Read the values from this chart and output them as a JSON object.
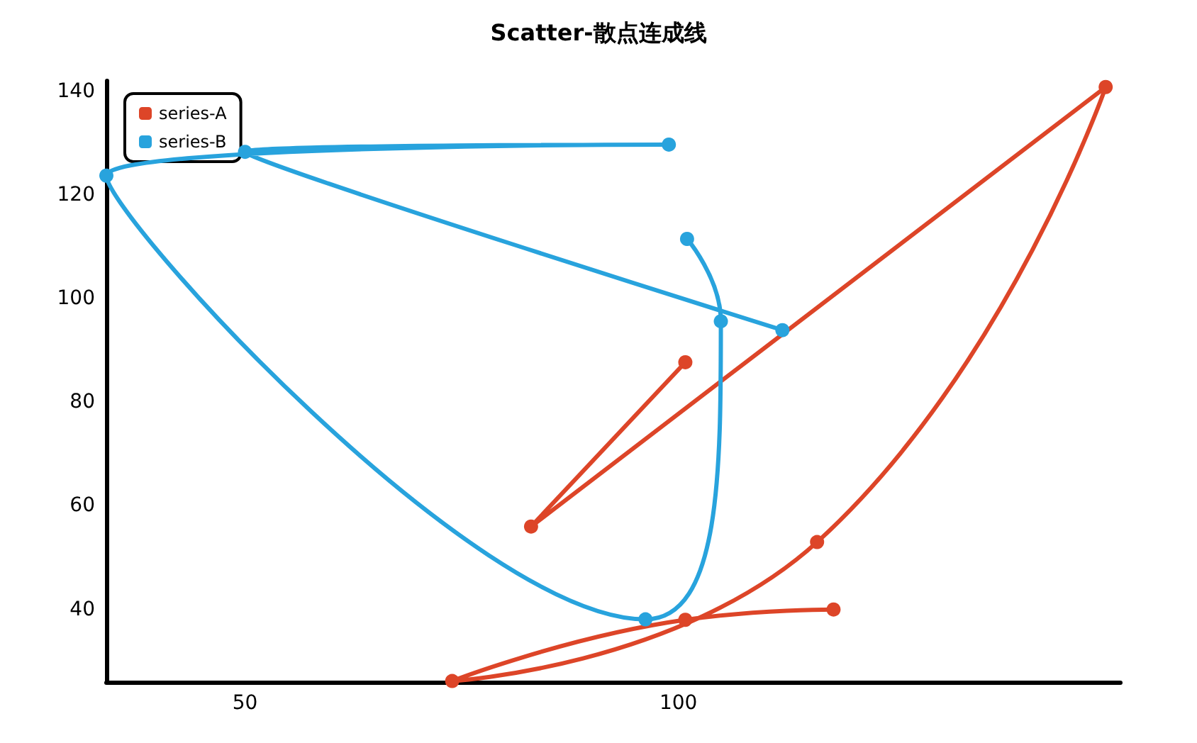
{
  "chart_data": {
    "type": "line",
    "title": "Scatter-散点连成线",
    "xlim": [
      34,
      151
    ],
    "xticks": [
      50,
      100
    ],
    "ylim": [
      26,
      142
    ],
    "yticks": [
      40,
      60,
      80,
      100,
      120,
      140
    ],
    "grid": false,
    "legend": "top left",
    "marker": "circle",
    "line_style": "solid",
    "series": [
      {
        "name": "series-A",
        "color": "#dd4528",
        "x": [
          100.8,
          83,
          149.3,
          116,
          73.9,
          100.8,
          117.9
        ],
        "values": [
          87.7,
          56,
          140.8,
          53,
          26.2,
          38,
          40
        ]
      },
      {
        "name": "series-B",
        "color": "#28a3dd",
        "x": [
          101,
          104.9,
          96.2,
          34,
          98.9,
          50,
          112
        ],
        "values": [
          111.5,
          95.6,
          38.1,
          123.7,
          129.7,
          128.3,
          93.9
        ]
      }
    ]
  }
}
